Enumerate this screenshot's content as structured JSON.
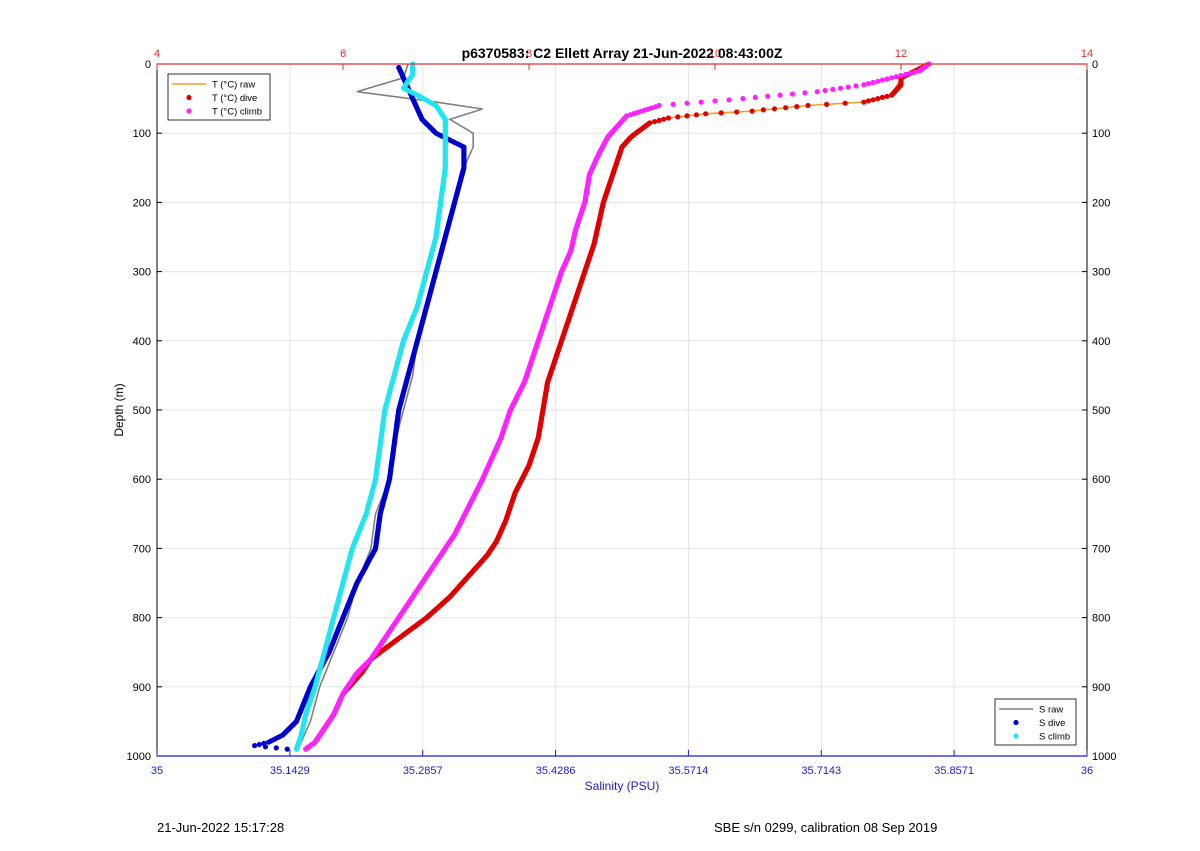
{
  "chart_data": {
    "type": "line",
    "title": "p6370583: C2 Ellett Array 21-Jun-2022 08:43:00Z",
    "xlabel": "Salinity (PSU)",
    "ylabel": "Depth (m)",
    "ylim": [
      1000,
      0
    ],
    "y_inverted": true,
    "grid": true,
    "x_bottom": {
      "label": "Salinity (PSU)",
      "lim": [
        35,
        36
      ],
      "ticks": [
        35,
        35.1429,
        35.2857,
        35.4286,
        35.5714,
        35.7143,
        35.8571,
        36
      ],
      "tick_labels": [
        "35",
        "35.1429",
        "35.2857",
        "35.4286",
        "35.5714",
        "35.7143",
        "35.8571",
        "36"
      ],
      "color": "#1a1adc"
    },
    "x_top": {
      "label": "",
      "lim": [
        4,
        14
      ],
      "ticks": [
        4,
        6,
        8,
        10,
        12,
        14
      ],
      "tick_labels": [
        "4",
        "6",
        "8",
        "10",
        "12",
        "14"
      ],
      "color": "#e03030"
    },
    "y_ticks": [
      0,
      100,
      200,
      300,
      400,
      500,
      600,
      700,
      800,
      900,
      1000
    ],
    "y_tick_labels": [
      "0",
      "100",
      "200",
      "300",
      "400",
      "500",
      "600",
      "700",
      "800",
      "900",
      "1000"
    ],
    "legends": [
      {
        "position": "top-left",
        "entries": [
          {
            "label": "T (°C) raw",
            "color": "#f0a020",
            "style": "line"
          },
          {
            "label": "T (°C) dive",
            "color": "#e00000",
            "style": "dot"
          },
          {
            "label": "T (°C) climb",
            "color": "#ff22ff",
            "style": "dot"
          }
        ]
      },
      {
        "position": "bottom-right",
        "entries": [
          {
            "label": "S raw",
            "color": "#808080",
            "style": "line"
          },
          {
            "label": "S dive",
            "color": "#0000cc",
            "style": "dot"
          },
          {
            "label": "S climb",
            "color": "#22e5f0",
            "style": "dot"
          }
        ]
      }
    ],
    "series": [
      {
        "name": "T (°C) dive",
        "axis": "top",
        "color": "#e00000",
        "style": "dot",
        "points": [
          [
            12.3,
            0
          ],
          [
            12.0,
            20
          ],
          [
            12.0,
            30
          ],
          [
            11.9,
            45
          ],
          [
            11.6,
            55
          ],
          [
            11.0,
            60
          ],
          [
            10.4,
            68
          ],
          [
            9.9,
            72
          ],
          [
            9.5,
            78
          ],
          [
            9.3,
            85
          ],
          [
            9.2,
            95
          ],
          [
            9.1,
            105
          ],
          [
            9.0,
            120
          ],
          [
            8.95,
            140
          ],
          [
            8.9,
            160
          ],
          [
            8.85,
            180
          ],
          [
            8.8,
            200
          ],
          [
            8.75,
            230
          ],
          [
            8.7,
            260
          ],
          [
            8.6,
            300
          ],
          [
            8.5,
            340
          ],
          [
            8.4,
            380
          ],
          [
            8.3,
            420
          ],
          [
            8.2,
            460
          ],
          [
            8.15,
            500
          ],
          [
            8.1,
            540
          ],
          [
            8.0,
            580
          ],
          [
            7.85,
            620
          ],
          [
            7.75,
            660
          ],
          [
            7.65,
            690
          ],
          [
            7.55,
            710
          ],
          [
            7.35,
            740
          ],
          [
            7.15,
            770
          ],
          [
            6.9,
            800
          ],
          [
            6.7,
            820
          ],
          [
            6.5,
            840
          ],
          [
            6.3,
            860
          ],
          [
            6.2,
            880
          ],
          [
            6.0,
            910
          ],
          [
            5.9,
            940
          ],
          [
            5.8,
            960
          ],
          [
            5.7,
            980
          ],
          [
            5.6,
            990
          ]
        ]
      },
      {
        "name": "T (°C) climb",
        "axis": "top",
        "color": "#ff22ff",
        "style": "dot",
        "points": [
          [
            12.3,
            0
          ],
          [
            12.2,
            10
          ],
          [
            11.9,
            20
          ],
          [
            11.6,
            30
          ],
          [
            11.1,
            40
          ],
          [
            10.3,
            50
          ],
          [
            9.4,
            60
          ],
          [
            9.05,
            75
          ],
          [
            8.95,
            90
          ],
          [
            8.85,
            105
          ],
          [
            8.75,
            130
          ],
          [
            8.65,
            160
          ],
          [
            8.6,
            200
          ],
          [
            8.5,
            240
          ],
          [
            8.45,
            270
          ],
          [
            8.35,
            300
          ],
          [
            8.25,
            340
          ],
          [
            8.15,
            380
          ],
          [
            8.05,
            420
          ],
          [
            7.95,
            460
          ],
          [
            7.8,
            500
          ],
          [
            7.7,
            540
          ],
          [
            7.6,
            570
          ],
          [
            7.5,
            600
          ],
          [
            7.35,
            640
          ],
          [
            7.2,
            680
          ],
          [
            7.0,
            720
          ],
          [
            6.8,
            760
          ],
          [
            6.6,
            800
          ],
          [
            6.45,
            830
          ],
          [
            6.3,
            860
          ],
          [
            6.15,
            880
          ],
          [
            6.0,
            910
          ],
          [
            5.9,
            940
          ],
          [
            5.8,
            960
          ],
          [
            5.7,
            980
          ],
          [
            5.6,
            990
          ]
        ]
      },
      {
        "name": "T (°C) raw",
        "axis": "top",
        "color": "#f0a020",
        "style": "line",
        "points": [
          [
            12.3,
            0
          ],
          [
            12.0,
            20
          ],
          [
            11.9,
            45
          ],
          [
            11.6,
            55
          ],
          [
            11.0,
            60
          ],
          [
            10.4,
            68
          ],
          [
            9.9,
            72
          ],
          [
            9.5,
            78
          ],
          [
            9.3,
            85
          ],
          [
            9.2,
            95
          ],
          [
            9.0,
            120
          ],
          [
            8.9,
            160
          ],
          [
            8.8,
            200
          ],
          [
            8.7,
            260
          ],
          [
            8.6,
            300
          ],
          [
            8.5,
            340
          ],
          [
            8.4,
            380
          ],
          [
            8.3,
            420
          ],
          [
            8.2,
            460
          ],
          [
            8.15,
            500
          ],
          [
            8.1,
            540
          ],
          [
            8.0,
            580
          ],
          [
            7.85,
            620
          ],
          [
            7.75,
            660
          ],
          [
            7.55,
            710
          ],
          [
            7.35,
            740
          ],
          [
            7.15,
            770
          ],
          [
            6.9,
            800
          ],
          [
            6.7,
            820
          ],
          [
            6.5,
            840
          ],
          [
            6.3,
            860
          ],
          [
            6.2,
            880
          ],
          [
            6.0,
            910
          ],
          [
            5.9,
            940
          ],
          [
            5.8,
            960
          ],
          [
            5.7,
            980
          ],
          [
            5.6,
            990
          ]
        ]
      },
      {
        "name": "S raw",
        "axis": "bottom",
        "color": "#808080",
        "style": "line",
        "points": [
          [
            35.27,
            0
          ],
          [
            35.265,
            20
          ],
          [
            35.215,
            40
          ],
          [
            35.3,
            55
          ],
          [
            35.35,
            65
          ],
          [
            35.315,
            80
          ],
          [
            35.34,
            100
          ],
          [
            35.34,
            120
          ],
          [
            35.33,
            150
          ],
          [
            35.32,
            200
          ],
          [
            35.31,
            250
          ],
          [
            35.3,
            300
          ],
          [
            35.29,
            350
          ],
          [
            35.28,
            400
          ],
          [
            35.275,
            450
          ],
          [
            35.265,
            500
          ],
          [
            35.255,
            550
          ],
          [
            35.25,
            600
          ],
          [
            35.235,
            650
          ],
          [
            35.23,
            700
          ],
          [
            35.215,
            750
          ],
          [
            35.205,
            800
          ],
          [
            35.19,
            850
          ],
          [
            35.175,
            900
          ],
          [
            35.165,
            950
          ],
          [
            35.155,
            980
          ],
          [
            35.15,
            990
          ]
        ]
      },
      {
        "name": "S dive",
        "axis": "bottom",
        "color": "#0000cc",
        "style": "dot",
        "points": [
          [
            35.26,
            5
          ],
          [
            35.265,
            20
          ],
          [
            35.275,
            50
          ],
          [
            35.285,
            80
          ],
          [
            35.3,
            100
          ],
          [
            35.33,
            120
          ],
          [
            35.33,
            150
          ],
          [
            35.32,
            200
          ],
          [
            35.31,
            250
          ],
          [
            35.3,
            300
          ],
          [
            35.29,
            350
          ],
          [
            35.28,
            400
          ],
          [
            35.27,
            450
          ],
          [
            35.26,
            500
          ],
          [
            35.255,
            550
          ],
          [
            35.25,
            600
          ],
          [
            35.24,
            650
          ],
          [
            35.235,
            700
          ],
          [
            35.215,
            750
          ],
          [
            35.2,
            800
          ],
          [
            35.185,
            850
          ],
          [
            35.165,
            900
          ],
          [
            35.15,
            950
          ],
          [
            35.135,
            970
          ],
          [
            35.12,
            980
          ],
          [
            35.105,
            985
          ],
          [
            35.14,
            990
          ]
        ]
      },
      {
        "name": "S climb",
        "axis": "bottom",
        "color": "#22e5f0",
        "style": "dot",
        "points": [
          [
            35.275,
            0
          ],
          [
            35.275,
            15
          ],
          [
            35.265,
            35
          ],
          [
            35.28,
            45
          ],
          [
            35.3,
            60
          ],
          [
            35.31,
            80
          ],
          [
            35.31,
            100
          ],
          [
            35.31,
            150
          ],
          [
            35.305,
            200
          ],
          [
            35.3,
            250
          ],
          [
            35.29,
            300
          ],
          [
            35.28,
            350
          ],
          [
            35.265,
            400
          ],
          [
            35.255,
            450
          ],
          [
            35.245,
            500
          ],
          [
            35.24,
            550
          ],
          [
            35.235,
            600
          ],
          [
            35.225,
            650
          ],
          [
            35.21,
            700
          ],
          [
            35.2,
            750
          ],
          [
            35.19,
            800
          ],
          [
            35.18,
            850
          ],
          [
            35.17,
            900
          ],
          [
            35.16,
            940
          ],
          [
            35.155,
            970
          ],
          [
            35.15,
            990
          ]
        ]
      }
    ]
  },
  "footer": {
    "timestamp": "21-Jun-2022 15:17:28",
    "calibration": "SBE s/n 0299, calibration 08 Sep 2019"
  }
}
